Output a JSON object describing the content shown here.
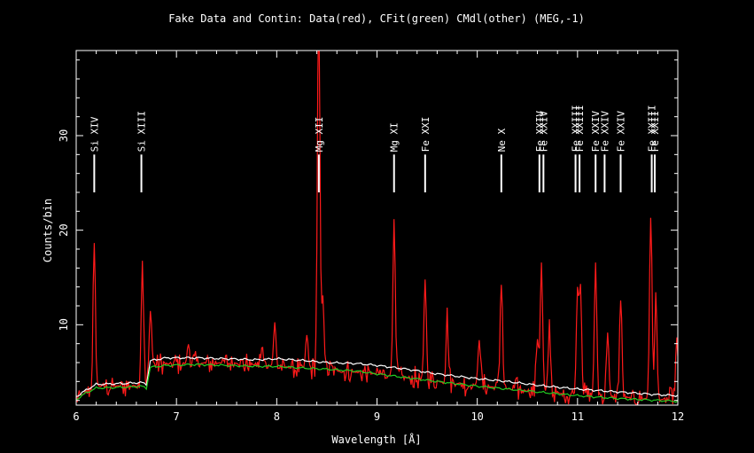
{
  "chart_data": {
    "type": "line",
    "title": "Fake Data and Contin: Data(red), CFit(green) CMdl(other) (MEG,-1)",
    "xlabel": "Wavelength [Å]",
    "ylabel": "Counts/bin",
    "xlim": [
      6,
      12
    ],
    "ylim": [
      1.5,
      39
    ],
    "x_ticks": [
      "6",
      "7",
      "8",
      "9",
      "10",
      "11",
      "12"
    ],
    "y_ticks": [
      "10",
      "20",
      "30"
    ],
    "grid": false,
    "colors": {
      "background": "#000000",
      "frame": "#ffffff",
      "data": "#ff1a1a",
      "cfit": "#22cc22",
      "cmdl": "#ffffff"
    },
    "series": [
      {
        "key": "data",
        "noise_amp": 1.4,
        "baseline": [
          [
            6.0,
            2.2
          ],
          [
            6.2,
            3.5
          ],
          [
            6.7,
            3.6
          ],
          [
            6.75,
            5.8
          ],
          [
            7.5,
            6.0
          ],
          [
            8.5,
            5.2
          ],
          [
            9.0,
            4.8
          ],
          [
            9.5,
            4.1
          ],
          [
            10.0,
            3.6
          ],
          [
            10.5,
            3.0
          ],
          [
            11.0,
            2.6
          ],
          [
            11.5,
            2.3
          ],
          [
            12.0,
            2.0
          ]
        ],
        "peaks": [
          [
            6.18,
            17.8
          ],
          [
            6.66,
            17.0
          ],
          [
            6.74,
            11.5
          ],
          [
            7.12,
            8.0
          ],
          [
            7.85,
            7.5
          ],
          [
            7.98,
            10.0
          ],
          [
            8.3,
            9.0
          ],
          [
            8.41,
            12.0
          ],
          [
            8.42,
            39.0
          ],
          [
            8.46,
            13.0
          ],
          [
            9.17,
            20.5
          ],
          [
            9.48,
            14.8
          ],
          [
            9.7,
            11.0
          ],
          [
            10.02,
            9.0
          ],
          [
            10.24,
            15.2
          ],
          [
            10.6,
            9.0
          ],
          [
            10.64,
            16.5
          ],
          [
            10.72,
            10.0
          ],
          [
            11.0,
            13.5
          ],
          [
            11.03,
            14.0
          ],
          [
            11.18,
            16.5
          ],
          [
            11.3,
            9.5
          ],
          [
            11.43,
            12.8
          ],
          [
            11.73,
            21.8
          ],
          [
            11.78,
            13.0
          ],
          [
            11.99,
            8.5
          ]
        ]
      },
      {
        "key": "cmdl",
        "points": [
          [
            6.0,
            2.4
          ],
          [
            6.1,
            3.1
          ],
          [
            6.2,
            3.7
          ],
          [
            6.5,
            3.8
          ],
          [
            6.65,
            3.9
          ],
          [
            6.7,
            3.7
          ],
          [
            6.74,
            6.2
          ],
          [
            6.9,
            6.5
          ],
          [
            7.2,
            6.5
          ],
          [
            7.5,
            6.4
          ],
          [
            7.8,
            6.3
          ],
          [
            8.0,
            6.4
          ],
          [
            8.3,
            6.2
          ],
          [
            8.5,
            6.0
          ],
          [
            8.8,
            5.9
          ],
          [
            9.0,
            5.7
          ],
          [
            9.3,
            5.3
          ],
          [
            9.6,
            4.8
          ],
          [
            10.0,
            4.3
          ],
          [
            10.3,
            4.0
          ],
          [
            10.6,
            3.6
          ],
          [
            11.0,
            3.2
          ],
          [
            11.4,
            2.9
          ],
          [
            11.8,
            2.6
          ],
          [
            12.0,
            2.5
          ]
        ]
      },
      {
        "key": "cfit",
        "points": [
          [
            6.0,
            2.1
          ],
          [
            6.1,
            2.8
          ],
          [
            6.2,
            3.3
          ],
          [
            6.5,
            3.4
          ],
          [
            6.65,
            3.5
          ],
          [
            6.7,
            3.3
          ],
          [
            6.74,
            5.5
          ],
          [
            6.9,
            5.7
          ],
          [
            7.2,
            5.8
          ],
          [
            7.5,
            5.7
          ],
          [
            7.8,
            5.6
          ],
          [
            8.0,
            5.6
          ],
          [
            8.3,
            5.4
          ],
          [
            8.5,
            5.3
          ],
          [
            8.8,
            5.1
          ],
          [
            9.0,
            4.8
          ],
          [
            9.3,
            4.4
          ],
          [
            9.6,
            4.0
          ],
          [
            10.0,
            3.5
          ],
          [
            10.3,
            3.2
          ],
          [
            10.6,
            2.9
          ],
          [
            11.0,
            2.5
          ],
          [
            11.4,
            2.2
          ],
          [
            11.8,
            2.0
          ],
          [
            12.0,
            1.9
          ]
        ]
      }
    ],
    "line_ids": [
      {
        "label": "Si XIV",
        "x": 6.18,
        "y_bottom": 24,
        "y_top": 28
      },
      {
        "label": "Si XIII",
        "x": 6.65,
        "y_bottom": 24,
        "y_top": 28
      },
      {
        "label": "Mg XII",
        "x": 8.42,
        "y_bottom": 24,
        "y_top": 28
      },
      {
        "label": "Mg XI",
        "x": 9.17,
        "y_bottom": 24,
        "y_top": 28
      },
      {
        "label": "Fe XXI",
        "x": 9.48,
        "y_bottom": 24,
        "y_top": 28
      },
      {
        "label": "Ne X",
        "x": 10.24,
        "y_bottom": 24,
        "y_top": 28
      },
      {
        "label": "Fe XXIV",
        "x": 10.62,
        "y_bottom": 24,
        "y_top": 28
      },
      {
        "label": "Fe XXIV",
        "x": 10.66,
        "y_bottom": 24,
        "y_top": 28
      },
      {
        "label": "Fe XXIII",
        "x": 10.98,
        "y_bottom": 24,
        "y_top": 28
      },
      {
        "label": "Fe XXIII",
        "x": 11.02,
        "y_bottom": 24,
        "y_top": 28
      },
      {
        "label": "Fe XXIV",
        "x": 11.18,
        "y_bottom": 24,
        "y_top": 28
      },
      {
        "label": "Fe XXIV",
        "x": 11.27,
        "y_bottom": 24,
        "y_top": 28
      },
      {
        "label": "Fe XXIV",
        "x": 11.43,
        "y_bottom": 24,
        "y_top": 28
      },
      {
        "label": "Fe XXIII",
        "x": 11.74,
        "y_bottom": 24,
        "y_top": 28
      },
      {
        "label": "Fe XXII",
        "x": 11.77,
        "y_bottom": 24,
        "y_top": 28
      }
    ]
  }
}
